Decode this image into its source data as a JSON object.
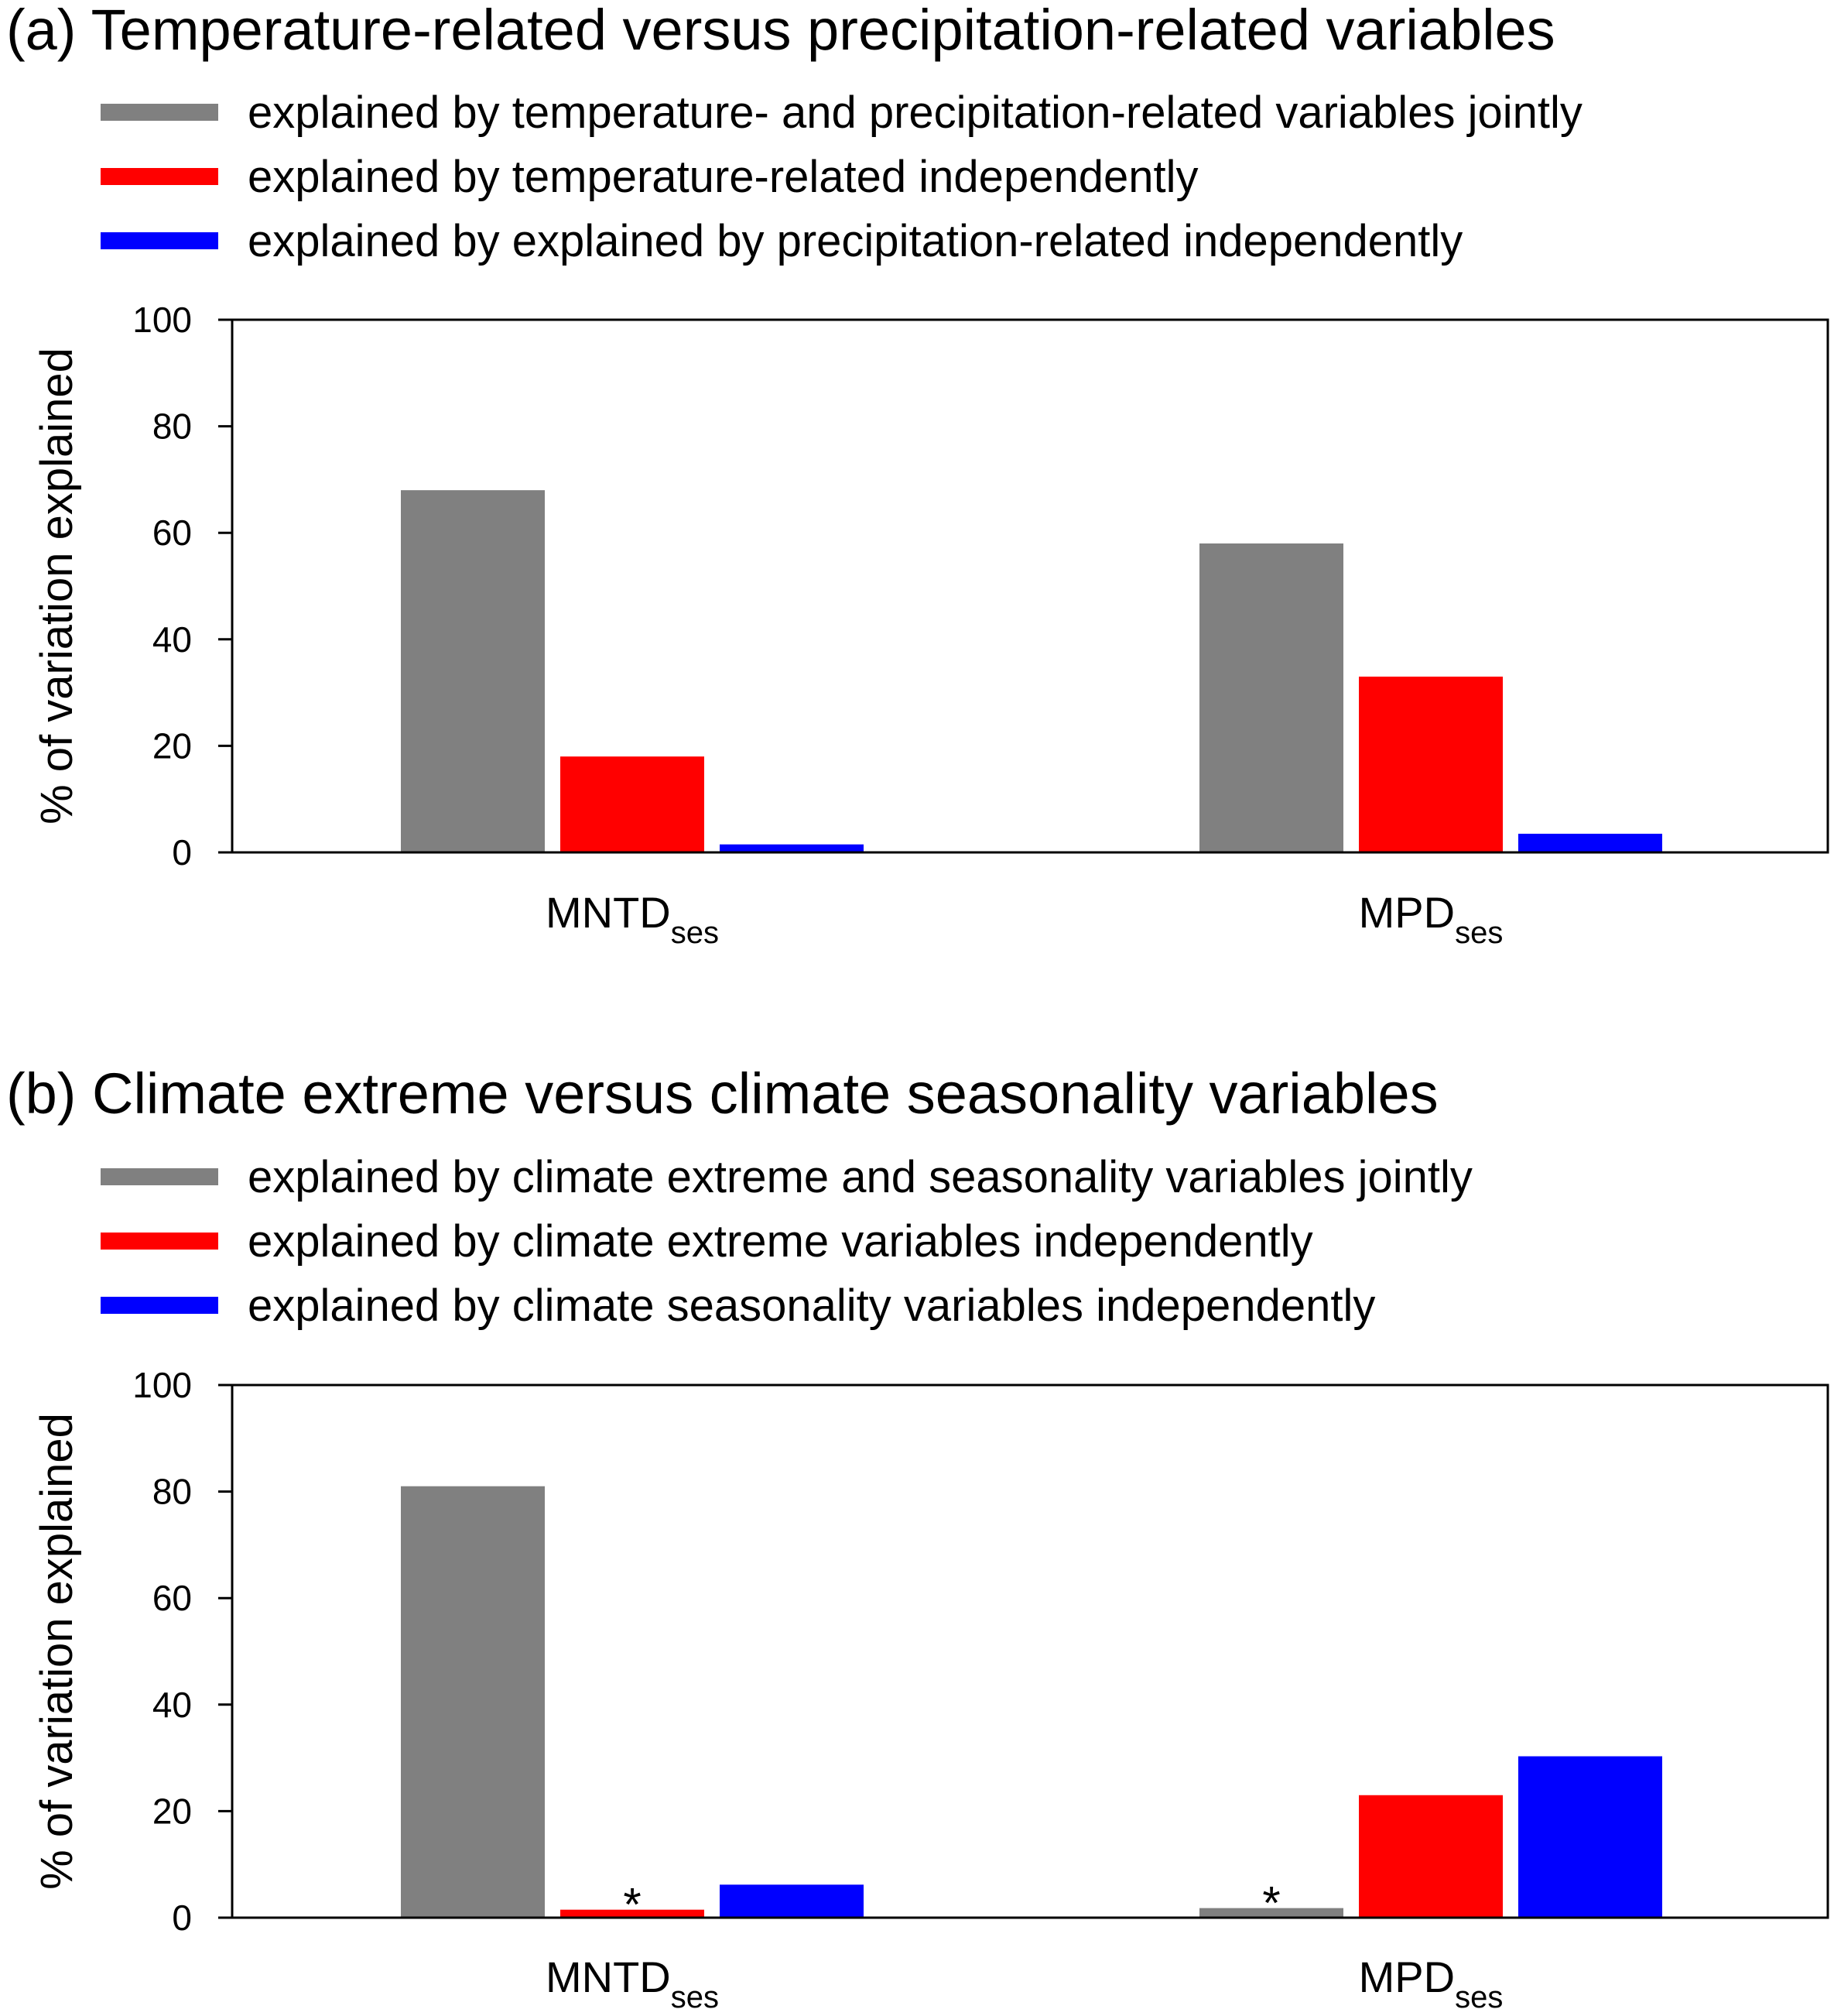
{
  "colors": {
    "joint": "#808080",
    "first": "#ff0000",
    "second": "#0000ff"
  },
  "chart_data": [
    {
      "type": "bar",
      "title": "(a) Temperature-related versus precipitation-related variables",
      "ylabel": "% of variation explained",
      "ylim": [
        0,
        100
      ],
      "yticks": [
        0,
        20,
        40,
        60,
        80,
        100
      ],
      "categories": [
        {
          "main": "MNTD",
          "sub": "ses"
        },
        {
          "main": "MPD",
          "sub": "ses"
        }
      ],
      "series": [
        {
          "name": "explained by temperature- and precipitation-related variables jointly",
          "color_key": "joint",
          "values": [
            68,
            58
          ]
        },
        {
          "name": "explained by temperature-related independently",
          "color_key": "first",
          "values": [
            18,
            33
          ]
        },
        {
          "name": "explained by explained by precipitation-related independently",
          "color_key": "second",
          "values": [
            1.5,
            3.5
          ]
        }
      ],
      "annotations": []
    },
    {
      "type": "bar",
      "title": "(b) Climate extreme versus climate seasonality variables",
      "ylabel": "% of variation explained",
      "ylim": [
        0,
        100
      ],
      "yticks": [
        0,
        20,
        40,
        60,
        80,
        100
      ],
      "categories": [
        {
          "main": "MNTD",
          "sub": "ses"
        },
        {
          "main": "MPD",
          "sub": "ses"
        }
      ],
      "series": [
        {
          "name": "explained by climate extreme and seasonality variables jointly",
          "color_key": "joint",
          "values": [
            81,
            1.8
          ]
        },
        {
          "name": "explained by climate extreme variables independently",
          "color_key": "first",
          "values": [
            1.5,
            23
          ]
        },
        {
          "name": "explained by climate seasonality variables independently",
          "color_key": "second",
          "values": [
            6.2,
            30.3
          ]
        }
      ],
      "annotations": [
        {
          "text": "*",
          "category_index": 0,
          "series_index": 1
        },
        {
          "text": "*",
          "category_index": 1,
          "series_index": 0
        }
      ]
    }
  ]
}
